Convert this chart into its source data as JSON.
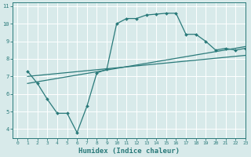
{
  "title": "",
  "xlabel": "Humidex (Indice chaleur)",
  "bg_color": "#d8eaea",
  "plot_bg_color": "#d8eaea",
  "grid_color": "#ffffff",
  "line_color": "#2a7a7a",
  "line1_x": [
    1,
    2,
    3,
    4,
    5,
    6,
    7,
    8,
    9,
    10,
    11,
    12,
    13,
    14,
    15,
    16,
    17,
    18,
    19,
    20,
    21,
    22,
    23
  ],
  "line1_y": [
    7.3,
    6.6,
    5.7,
    4.9,
    4.9,
    3.8,
    5.3,
    7.2,
    7.4,
    10.0,
    10.3,
    10.3,
    10.5,
    10.55,
    10.6,
    10.6,
    9.4,
    9.4,
    9.0,
    8.5,
    8.6,
    8.5,
    8.6
  ],
  "line2_x": [
    1,
    23
  ],
  "line2_y": [
    7.0,
    8.2
  ],
  "line3_x": [
    1,
    23
  ],
  "line3_y": [
    6.6,
    8.7
  ],
  "xlim": [
    -0.5,
    23
  ],
  "ylim": [
    3.5,
    11.2
  ],
  "xticks": [
    0,
    1,
    2,
    3,
    4,
    5,
    6,
    7,
    8,
    9,
    10,
    11,
    12,
    13,
    14,
    15,
    16,
    17,
    18,
    19,
    20,
    21,
    22,
    23
  ],
  "yticks": [
    4,
    5,
    6,
    7,
    8,
    9,
    10,
    11
  ]
}
